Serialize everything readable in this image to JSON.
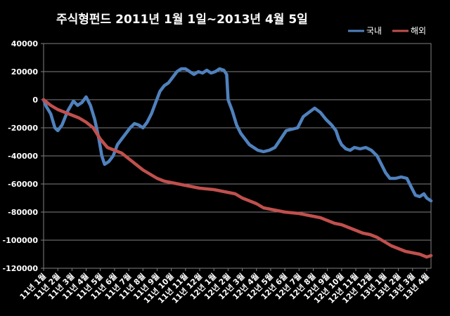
{
  "chart_data": {
    "type": "line",
    "title": "주식형펀드    2011년 1월 1일~2013년 4월 5일",
    "xlabel": "",
    "ylabel": "",
    "ylim": [
      -120000,
      40000
    ],
    "yticks": [
      40000,
      20000,
      0,
      -20000,
      -40000,
      -60000,
      -80000,
      -100000,
      -120000
    ],
    "ytick_labels": [
      "40000",
      "20000",
      "0",
      "-20000",
      "-40000",
      "-60000",
      "-80000",
      "-100000",
      "-120000"
    ],
    "grid": "horizontal",
    "legend_position": "top-right",
    "x_labels": [
      "11년 1월",
      "11년 2월",
      "11년 3월",
      "11년 4월",
      "11년 5월",
      "11년 6월",
      "11년 7월",
      "11년 8월",
      "11년 9월",
      "11년 10월",
      "11년 11월",
      "11년 12월",
      "12년 1월",
      "12년 2월",
      "12년 3월",
      "12년 4월",
      "12년 5월",
      "12년 6월",
      "12년 7월",
      "12년 8월",
      "12년 9월",
      "12년 10월",
      "12년 11월",
      "12년 12월",
      "13년 1월",
      "13년 2월",
      "13년 3월",
      "13년 4월"
    ],
    "series": [
      {
        "name": "국내",
        "color": "#4F81BD",
        "points": [
          [
            0,
            0
          ],
          [
            0.2,
            -5000
          ],
          [
            0.5,
            -10000
          ],
          [
            0.8,
            -20000
          ],
          [
            1.0,
            -22000
          ],
          [
            1.3,
            -18000
          ],
          [
            1.7,
            -8000
          ],
          [
            2.1,
            -1000
          ],
          [
            2.4,
            -4000
          ],
          [
            2.7,
            -2000
          ],
          [
            3.0,
            2000
          ],
          [
            3.3,
            -4000
          ],
          [
            3.6,
            -14000
          ],
          [
            3.9,
            -28000
          ],
          [
            4.1,
            -40000
          ],
          [
            4.3,
            -46000
          ],
          [
            4.6,
            -44000
          ],
          [
            4.9,
            -40000
          ],
          [
            5.2,
            -32000
          ],
          [
            5.5,
            -28000
          ],
          [
            5.8,
            -24000
          ],
          [
            6.1,
            -20000
          ],
          [
            6.4,
            -17000
          ],
          [
            6.7,
            -18000
          ],
          [
            7.0,
            -20000
          ],
          [
            7.3,
            -16000
          ],
          [
            7.6,
            -10000
          ],
          [
            7.9,
            -2000
          ],
          [
            8.2,
            6000
          ],
          [
            8.5,
            10000
          ],
          [
            8.8,
            12000
          ],
          [
            9.1,
            16000
          ],
          [
            9.4,
            20000
          ],
          [
            9.7,
            22000
          ],
          [
            10.0,
            22000
          ],
          [
            10.3,
            20000
          ],
          [
            10.6,
            18000
          ],
          [
            10.9,
            20000
          ],
          [
            11.2,
            19000
          ],
          [
            11.5,
            21000
          ],
          [
            11.8,
            19000
          ],
          [
            12.1,
            20000
          ],
          [
            12.4,
            22000
          ],
          [
            12.7,
            21000
          ],
          [
            12.9,
            18000
          ],
          [
            13.0,
            0
          ],
          [
            13.3,
            -8000
          ],
          [
            13.6,
            -18000
          ],
          [
            13.9,
            -24000
          ],
          [
            14.2,
            -28000
          ],
          [
            14.5,
            -32000
          ],
          [
            14.8,
            -34000
          ],
          [
            15.1,
            -36000
          ],
          [
            15.5,
            -37000
          ],
          [
            15.9,
            -36000
          ],
          [
            16.3,
            -34000
          ],
          [
            16.7,
            -28000
          ],
          [
            17.1,
            -22000
          ],
          [
            17.5,
            -21000
          ],
          [
            17.9,
            -20000
          ],
          [
            18.3,
            -12000
          ],
          [
            18.7,
            -9000
          ],
          [
            19.1,
            -6000
          ],
          [
            19.5,
            -9000
          ],
          [
            19.9,
            -14000
          ],
          [
            20.3,
            -18000
          ],
          [
            20.6,
            -22000
          ],
          [
            20.8,
            -28000
          ],
          [
            21.0,
            -32000
          ],
          [
            21.3,
            -35000
          ],
          [
            21.6,
            -36000
          ],
          [
            21.9,
            -34000
          ],
          [
            22.3,
            -35000
          ],
          [
            22.7,
            -34000
          ],
          [
            23.1,
            -36000
          ],
          [
            23.5,
            -40000
          ],
          [
            23.8,
            -46000
          ],
          [
            24.1,
            -52000
          ],
          [
            24.4,
            -56000
          ],
          [
            24.8,
            -56000
          ],
          [
            25.2,
            -55000
          ],
          [
            25.6,
            -56000
          ],
          [
            25.9,
            -62000
          ],
          [
            26.2,
            -68000
          ],
          [
            26.5,
            -69000
          ],
          [
            26.8,
            -67000
          ],
          [
            27.0,
            -70000
          ],
          [
            27.3,
            -72000
          ]
        ]
      },
      {
        "name": "해외",
        "color": "#C0504D",
        "points": [
          [
            0,
            0
          ],
          [
            0.5,
            -4000
          ],
          [
            1.0,
            -7000
          ],
          [
            1.5,
            -9000
          ],
          [
            2.0,
            -11000
          ],
          [
            2.5,
            -13000
          ],
          [
            3.0,
            -16000
          ],
          [
            3.5,
            -20000
          ],
          [
            4.0,
            -28000
          ],
          [
            4.5,
            -34000
          ],
          [
            5.0,
            -36000
          ],
          [
            5.5,
            -38000
          ],
          [
            6.0,
            -42000
          ],
          [
            6.5,
            -46000
          ],
          [
            7.0,
            -50000
          ],
          [
            7.5,
            -53000
          ],
          [
            8.0,
            -56000
          ],
          [
            8.5,
            -58000
          ],
          [
            9.0,
            -59000
          ],
          [
            9.5,
            -60000
          ],
          [
            10.0,
            -61000
          ],
          [
            10.5,
            -62000
          ],
          [
            11.0,
            -63000
          ],
          [
            11.5,
            -63500
          ],
          [
            12.0,
            -64000
          ],
          [
            12.5,
            -65000
          ],
          [
            13.0,
            -66000
          ],
          [
            13.5,
            -67000
          ],
          [
            14.0,
            -70000
          ],
          [
            14.5,
            -72000
          ],
          [
            15.0,
            -74000
          ],
          [
            15.5,
            -77000
          ],
          [
            16.0,
            -78000
          ],
          [
            16.5,
            -79000
          ],
          [
            17.0,
            -80000
          ],
          [
            17.5,
            -80500
          ],
          [
            18.0,
            -81000
          ],
          [
            18.5,
            -82000
          ],
          [
            19.0,
            -83000
          ],
          [
            19.5,
            -84000
          ],
          [
            20.0,
            -86000
          ],
          [
            20.5,
            -88000
          ],
          [
            21.0,
            -89000
          ],
          [
            21.5,
            -91000
          ],
          [
            22.0,
            -93000
          ],
          [
            22.5,
            -95000
          ],
          [
            23.0,
            -96000
          ],
          [
            23.5,
            -98000
          ],
          [
            24.0,
            -101000
          ],
          [
            24.5,
            -104000
          ],
          [
            25.0,
            -106000
          ],
          [
            25.5,
            -108000
          ],
          [
            26.0,
            -109000
          ],
          [
            26.5,
            -110000
          ],
          [
            27.0,
            -112000
          ],
          [
            27.3,
            -111000
          ]
        ]
      }
    ]
  }
}
